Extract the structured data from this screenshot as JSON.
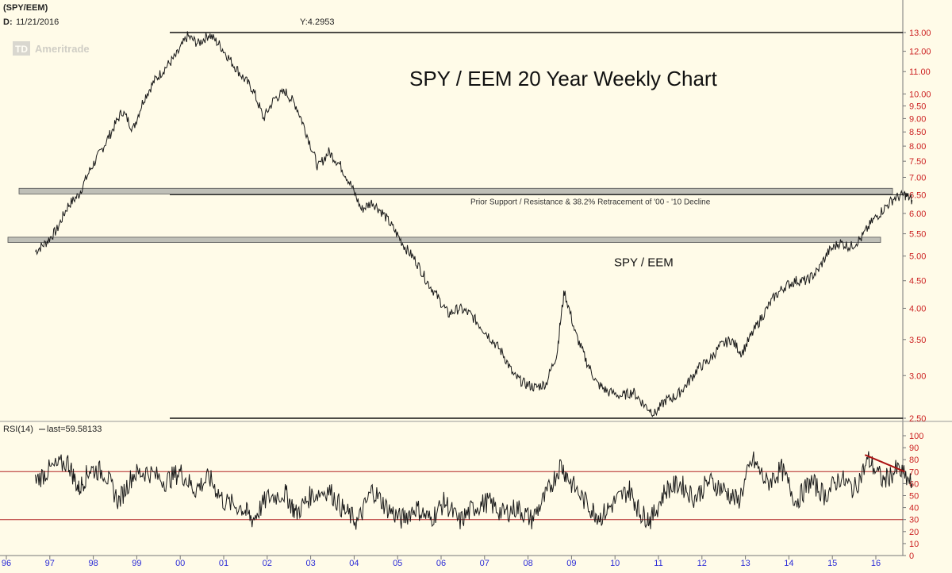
{
  "header": {
    "symbol": "(SPY/EEM)",
    "date_label": "D:",
    "date": "11/21/2016",
    "y_readout": "Y:4.2953",
    "watermark_logo": "TD",
    "watermark_text": "Ameritrade"
  },
  "chart_data": [
    {
      "type": "line",
      "title": "SPY / EEM 20 Year Weekly Chart",
      "series": [
        {
          "name": "SPY / EEM",
          "points": [
            [
              "1996-09",
              5.1
            ],
            [
              "1996-12",
              5.3
            ],
            [
              "1997-03",
              5.6
            ],
            [
              "1997-06",
              6.2
            ],
            [
              "1997-09",
              6.5
            ],
            [
              "1997-12",
              7.2
            ],
            [
              "1998-03",
              7.8
            ],
            [
              "1998-06",
              8.5
            ],
            [
              "1998-09",
              9.3
            ],
            [
              "1998-12",
              8.6
            ],
            [
              "1999-03",
              9.8
            ],
            [
              "1999-06",
              10.6
            ],
            [
              "1999-09",
              11.2
            ],
            [
              "1999-12",
              11.8
            ],
            [
              "2000-03",
              12.8
            ],
            [
              "2000-06",
              12.4
            ],
            [
              "2000-09",
              12.9
            ],
            [
              "2000-12",
              12.3
            ],
            [
              "2001-03",
              11.5
            ],
            [
              "2001-06",
              10.8
            ],
            [
              "2001-09",
              10.2
            ],
            [
              "2001-12",
              9.0
            ],
            [
              "2002-03",
              9.8
            ],
            [
              "2002-06",
              10.1
            ],
            [
              "2002-09",
              9.5
            ],
            [
              "2002-12",
              8.4
            ],
            [
              "2003-03",
              7.3
            ],
            [
              "2003-06",
              7.8
            ],
            [
              "2003-09",
              7.4
            ],
            [
              "2003-12",
              6.8
            ],
            [
              "2004-03",
              6.1
            ],
            [
              "2004-06",
              6.3
            ],
            [
              "2004-09",
              6.0
            ],
            [
              "2004-12",
              5.6
            ],
            [
              "2005-03",
              5.2
            ],
            [
              "2005-06",
              4.9
            ],
            [
              "2005-09",
              4.5
            ],
            [
              "2005-12",
              4.2
            ],
            [
              "2006-03",
              3.9
            ],
            [
              "2006-06",
              4.0
            ],
            [
              "2006-09",
              3.9
            ],
            [
              "2006-12",
              3.7
            ],
            [
              "2007-03",
              3.5
            ],
            [
              "2007-06",
              3.3
            ],
            [
              "2007-09",
              3.0
            ],
            [
              "2007-12",
              2.9
            ],
            [
              "2008-03",
              2.85
            ],
            [
              "2008-06",
              2.9
            ],
            [
              "2008-09",
              3.3
            ],
            [
              "2008-11",
              4.3
            ],
            [
              "2009-02",
              3.6
            ],
            [
              "2009-05",
              3.2
            ],
            [
              "2009-08",
              2.9
            ],
            [
              "2009-11",
              2.8
            ],
            [
              "2010-03",
              2.75
            ],
            [
              "2010-06",
              2.8
            ],
            [
              "2010-09",
              2.65
            ],
            [
              "2010-12",
              2.55
            ],
            [
              "2011-03",
              2.7
            ],
            [
              "2011-06",
              2.75
            ],
            [
              "2011-09",
              2.9
            ],
            [
              "2011-12",
              3.1
            ],
            [
              "2012-03",
              3.2
            ],
            [
              "2012-06",
              3.4
            ],
            [
              "2012-09",
              3.5
            ],
            [
              "2012-12",
              3.3
            ],
            [
              "2013-03",
              3.6
            ],
            [
              "2013-06",
              3.9
            ],
            [
              "2013-09",
              4.2
            ],
            [
              "2013-12",
              4.4
            ],
            [
              "2014-03",
              4.5
            ],
            [
              "2014-06",
              4.5
            ],
            [
              "2014-09",
              4.7
            ],
            [
              "2014-12",
              5.1
            ],
            [
              "2015-03",
              5.3
            ],
            [
              "2015-06",
              5.2
            ],
            [
              "2015-09",
              5.4
            ],
            [
              "2015-12",
              5.8
            ],
            [
              "2016-03",
              6.1
            ],
            [
              "2016-06",
              6.4
            ],
            [
              "2016-09",
              6.5
            ],
            [
              "2016-11",
              6.35
            ]
          ]
        }
      ],
      "y_axis": {
        "scale": "log",
        "ticks": [
          "2.50",
          "3.00",
          "3.50",
          "4.00",
          "4.50",
          "5.00",
          "5.50",
          "6.00",
          "6.50",
          "7.00",
          "7.50",
          "8.00",
          "8.50",
          "9.00",
          "9.50",
          "10.00",
          "11.00",
          "12.00",
          "13.00"
        ],
        "ylim": [
          2.5,
          13.0
        ]
      },
      "x_axis": {
        "ticks": [
          "96",
          "97",
          "98",
          "99",
          "00",
          "01",
          "02",
          "03",
          "04",
          "05",
          "06",
          "07",
          "08",
          "09",
          "10",
          "11",
          "12",
          "13",
          "14",
          "15",
          "16"
        ]
      },
      "horizontal_lines": [
        {
          "y": 13.0
        },
        {
          "y": 6.5
        },
        {
          "y": 2.5
        }
      ],
      "bands": [
        {
          "y_top": 6.68,
          "y_bottom": 6.52
        },
        {
          "y_top": 5.42,
          "y_bottom": 5.3
        }
      ],
      "annotations": [
        {
          "text": "Prior Support / Resistance & 38.2% Retracement of '00 - '10 Decline",
          "y": 6.5
        },
        {
          "text": "SPY / EEM",
          "y": 5.0
        }
      ],
      "grid": false,
      "colors": {
        "background": "#fffbe8",
        "line": "#1a1a1a",
        "tick_label": "#cc2222",
        "year_label": "#2b2bd6",
        "band": "#bfbfb7"
      }
    },
    {
      "type": "line",
      "title": "RSI(14)",
      "legend_text": "RSI(14)",
      "legend_value": "last=59.58133",
      "series": [
        {
          "name": "RSI(14)",
          "points": [
            [
              "1996-09",
              62
            ],
            [
              "1997-01",
              72
            ],
            [
              "1997-06",
              78
            ],
            [
              "1997-09",
              55
            ],
            [
              "1997-12",
              72
            ],
            [
              "1998-04",
              70
            ],
            [
              "1998-08",
              45
            ],
            [
              "1998-12",
              68
            ],
            [
              "1999-04",
              70
            ],
            [
              "1999-09",
              62
            ],
            [
              "2000-01",
              70
            ],
            [
              "2000-05",
              55
            ],
            [
              "2000-09",
              65
            ],
            [
              "2001-01",
              45
            ],
            [
              "2001-06",
              40
            ],
            [
              "2001-09",
              30
            ],
            [
              "2002-01",
              48
            ],
            [
              "2002-06",
              52
            ],
            [
              "2002-09",
              35
            ],
            [
              "2003-01",
              50
            ],
            [
              "2003-06",
              55
            ],
            [
              "2003-10",
              38
            ],
            [
              "2004-02",
              28
            ],
            [
              "2004-06",
              55
            ],
            [
              "2004-10",
              40
            ],
            [
              "2005-02",
              30
            ],
            [
              "2005-06",
              40
            ],
            [
              "2005-10",
              30
            ],
            [
              "2006-02",
              45
            ],
            [
              "2006-06",
              28
            ],
            [
              "2006-10",
              40
            ],
            [
              "2007-02",
              45
            ],
            [
              "2007-06",
              35
            ],
            [
              "2007-10",
              40
            ],
            [
              "2008-02",
              30
            ],
            [
              "2008-06",
              50
            ],
            [
              "2008-10",
              76
            ],
            [
              "2009-01",
              60
            ],
            [
              "2009-06",
              40
            ],
            [
              "2009-09",
              32
            ],
            [
              "2010-01",
              45
            ],
            [
              "2010-05",
              55
            ],
            [
              "2010-08",
              35
            ],
            [
              "2010-11",
              30
            ],
            [
              "2011-03",
              55
            ],
            [
              "2011-07",
              60
            ],
            [
              "2011-11",
              48
            ],
            [
              "2012-03",
              62
            ],
            [
              "2012-07",
              55
            ],
            [
              "2012-11",
              45
            ],
            [
              "2013-03",
              80
            ],
            [
              "2013-07",
              60
            ],
            [
              "2013-11",
              72
            ],
            [
              "2014-03",
              45
            ],
            [
              "2014-07",
              62
            ],
            [
              "2014-11",
              50
            ],
            [
              "2015-03",
              65
            ],
            [
              "2015-07",
              55
            ],
            [
              "2015-11",
              80
            ],
            [
              "2016-03",
              62
            ],
            [
              "2016-07",
              72
            ],
            [
              "2016-11",
              59.58
            ]
          ]
        }
      ],
      "y_axis": {
        "ticks": [
          "0",
          "10",
          "20",
          "30",
          "40",
          "50",
          "60",
          "70",
          "80",
          "90",
          "100"
        ],
        "ylim": [
          0,
          100
        ]
      },
      "horizontal_lines": [
        {
          "y": 70
        },
        {
          "y": 30
        }
      ],
      "trendline": {
        "x": [
          "2015-10",
          "2016-09"
        ],
        "y": [
          84,
          70
        ]
      },
      "colors": {
        "line": "#1a1a1a",
        "threshold": "#b22222",
        "trendline": "#aa1111"
      }
    }
  ]
}
